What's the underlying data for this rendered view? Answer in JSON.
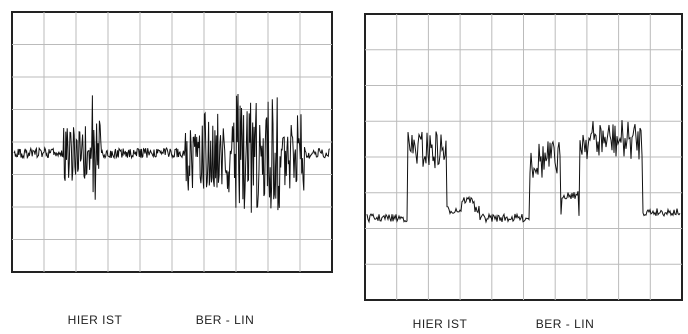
{
  "panels": [
    {
      "labels": [
        "HIER IST",
        "BER - LIN"
      ]
    },
    {
      "labels": [
        "HIER IST",
        "BER - LIN"
      ]
    }
  ]
}
